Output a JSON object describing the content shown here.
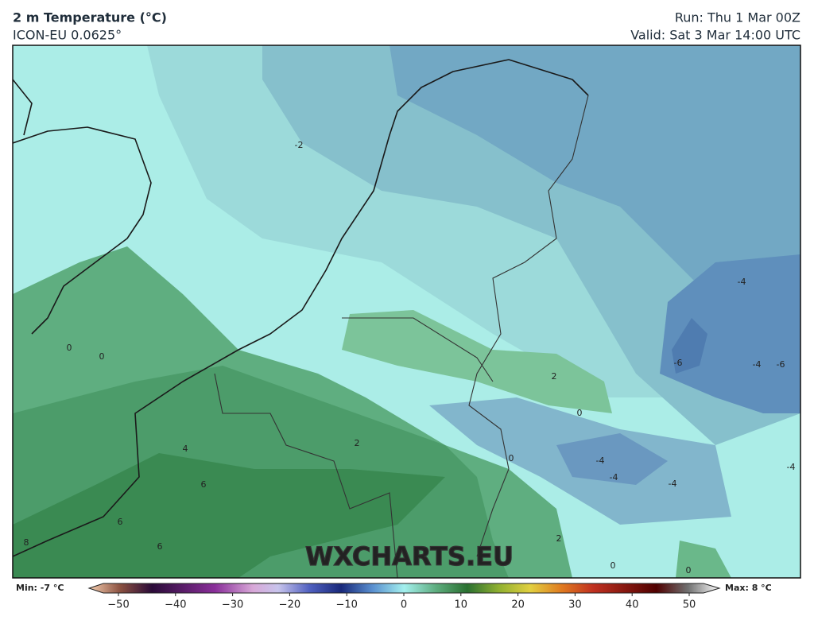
{
  "header": {
    "title": "2 m Temperature (°C)",
    "model": "ICON-EU 0.0625°",
    "run": "Run: Thu 1 Mar 00Z",
    "valid": "Valid: Sat 3 Mar 14:00 UTC"
  },
  "map": {
    "watermark": "WXCHARTS.EU",
    "contour_labels": [
      "-2",
      "0",
      "0",
      "-4",
      "-6",
      "-4",
      "-6",
      "2",
      "0",
      "2",
      "4",
      "0",
      "-4",
      "-4",
      "-4",
      "-4",
      "6",
      "6",
      "6",
      "8",
      "2",
      "0",
      "0"
    ]
  },
  "colorbar": {
    "min_label": "Min: -7 °C",
    "max_label": "Max: 8 °C",
    "lim": [
      -50,
      50
    ],
    "ticks": [
      {
        "value": -50,
        "label": "−50"
      },
      {
        "value": -40,
        "label": "−40"
      },
      {
        "value": -30,
        "label": "−30"
      },
      {
        "value": -20,
        "label": "−20"
      },
      {
        "value": -10,
        "label": "−10"
      },
      0,
      10,
      20,
      30,
      40,
      50
    ]
  }
}
